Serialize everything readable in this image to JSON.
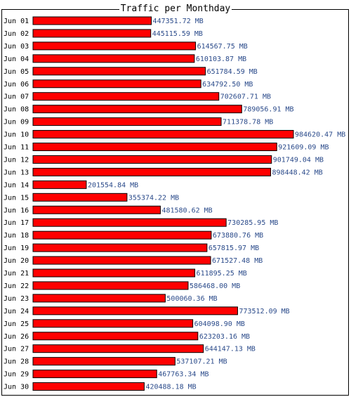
{
  "chart_data": {
    "type": "bar",
    "orientation": "horizontal",
    "title": "Traffic per Monthday",
    "unit": "MB",
    "bar_color": "#ff0000",
    "bar_border_color": "#000000",
    "value_label_color": "#2a4a8a",
    "categories": [
      "Jun 01",
      "Jun 02",
      "Jun 03",
      "Jun 04",
      "Jun 05",
      "Jun 06",
      "Jun 07",
      "Jun 08",
      "Jun 09",
      "Jun 10",
      "Jun 11",
      "Jun 12",
      "Jun 13",
      "Jun 14",
      "Jun 15",
      "Jun 16",
      "Jun 17",
      "Jun 18",
      "Jun 19",
      "Jun 20",
      "Jun 21",
      "Jun 22",
      "Jun 23",
      "Jun 24",
      "Jun 25",
      "Jun 26",
      "Jun 27",
      "Jun 28",
      "Jun 29",
      "Jun 30"
    ],
    "values": [
      447351.72,
      445115.59,
      614567.75,
      610103.87,
      651784.59,
      634792.5,
      702607.71,
      789056.91,
      711378.78,
      984620.47,
      921609.09,
      901749.04,
      898448.42,
      201554.84,
      355374.22,
      481580.62,
      730285.95,
      673880.76,
      657815.97,
      671527.48,
      611895.25,
      586468.0,
      500060.36,
      773512.09,
      604098.9,
      623203.16,
      644147.13,
      537107.21,
      467763.34,
      420488.18
    ],
    "value_labels": [
      "447351.72 MB",
      "445115.59 MB",
      "614567.75 MB",
      "610103.87 MB",
      "651784.59 MB",
      "634792.50 MB",
      "702607.71 MB",
      "789056.91 MB",
      "711378.78 MB",
      "984620.47 MB",
      "921609.09 MB",
      "901749.04 MB",
      "898448.42 MB",
      "201554.84 MB",
      "355374.22 MB",
      "481580.62 MB",
      "730285.95 MB",
      "673880.76 MB",
      "657815.97 MB",
      "671527.48 MB",
      "611895.25 MB",
      "586468.00 MB",
      "500060.36 MB",
      "773512.09 MB",
      "604098.90 MB",
      "623203.16 MB",
      "644147.13 MB",
      "537107.21 MB",
      "467763.34 MB",
      "420488.18 MB"
    ]
  }
}
